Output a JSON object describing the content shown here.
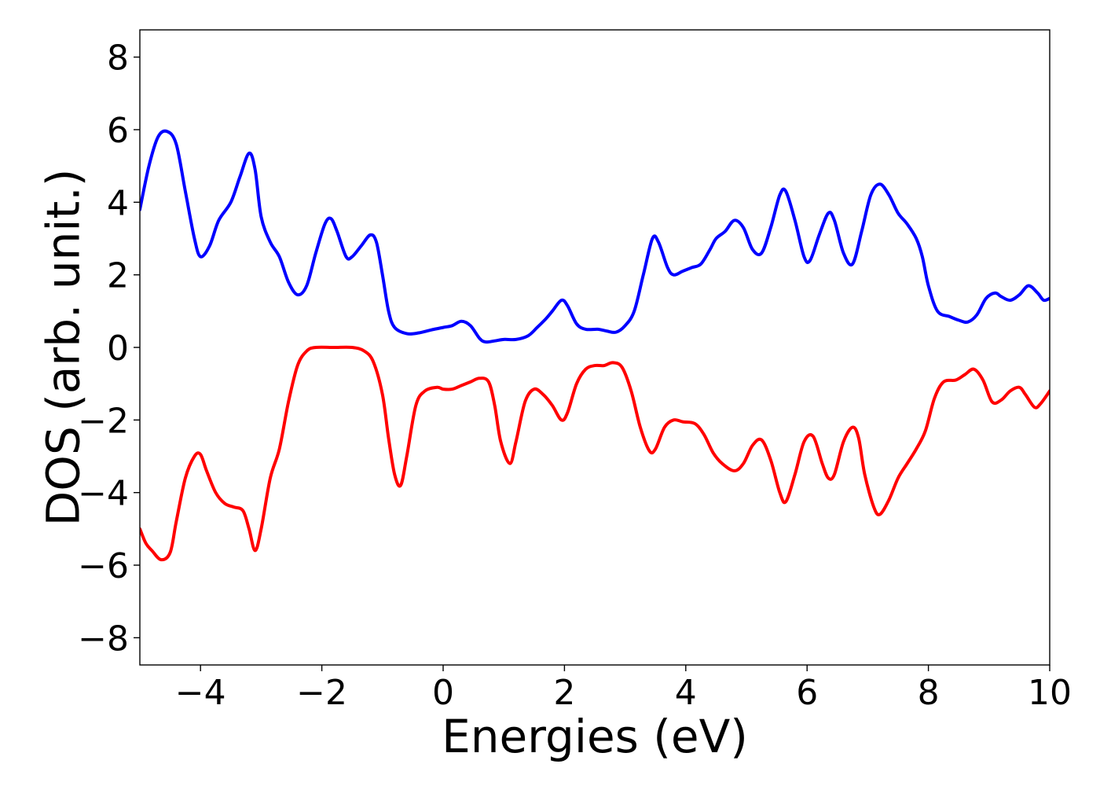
{
  "chart_data": {
    "type": "line",
    "title": "",
    "xlabel": "Energies (eV)",
    "ylabel": "DOS (arb. unit.)",
    "xlim": [
      -5,
      10
    ],
    "ylim": [
      -8.75,
      8.75
    ],
    "x_ticks": [
      -4,
      -2,
      0,
      2,
      4,
      6,
      8,
      10
    ],
    "x_tick_labels": [
      "−4",
      "−2",
      "0",
      "2",
      "4",
      "6",
      "8",
      "10"
    ],
    "y_ticks": [
      -8,
      -6,
      -4,
      -2,
      0,
      2,
      4,
      6,
      8
    ],
    "y_tick_labels": [
      "−8",
      "−6",
      "−4",
      "−2",
      "0",
      "2",
      "4",
      "6",
      "8"
    ],
    "grid": false,
    "legend": "none",
    "series": [
      {
        "color": "#0000ff",
        "points": [
          [
            -5.0,
            3.8
          ],
          [
            -4.85,
            5.0
          ],
          [
            -4.7,
            5.8
          ],
          [
            -4.55,
            5.95
          ],
          [
            -4.4,
            5.6
          ],
          [
            -4.25,
            4.3
          ],
          [
            -4.1,
            3.0
          ],
          [
            -4.0,
            2.5
          ],
          [
            -3.85,
            2.8
          ],
          [
            -3.7,
            3.5
          ],
          [
            -3.5,
            4.0
          ],
          [
            -3.35,
            4.7
          ],
          [
            -3.2,
            5.35
          ],
          [
            -3.1,
            4.9
          ],
          [
            -3.0,
            3.6
          ],
          [
            -2.85,
            2.9
          ],
          [
            -2.7,
            2.5
          ],
          [
            -2.55,
            1.8
          ],
          [
            -2.4,
            1.45
          ],
          [
            -2.25,
            1.7
          ],
          [
            -2.1,
            2.6
          ],
          [
            -1.95,
            3.4
          ],
          [
            -1.85,
            3.55
          ],
          [
            -1.75,
            3.2
          ],
          [
            -1.6,
            2.5
          ],
          [
            -1.5,
            2.5
          ],
          [
            -1.35,
            2.8
          ],
          [
            -1.2,
            3.1
          ],
          [
            -1.1,
            2.9
          ],
          [
            -1.0,
            2.0
          ],
          [
            -0.9,
            1.0
          ],
          [
            -0.8,
            0.55
          ],
          [
            -0.6,
            0.38
          ],
          [
            -0.4,
            0.4
          ],
          [
            -0.2,
            0.48
          ],
          [
            0.0,
            0.55
          ],
          [
            0.15,
            0.6
          ],
          [
            0.3,
            0.72
          ],
          [
            0.45,
            0.6
          ],
          [
            0.6,
            0.25
          ],
          [
            0.7,
            0.15
          ],
          [
            0.85,
            0.18
          ],
          [
            1.0,
            0.22
          ],
          [
            1.2,
            0.22
          ],
          [
            1.4,
            0.32
          ],
          [
            1.55,
            0.55
          ],
          [
            1.7,
            0.8
          ],
          [
            1.8,
            1.0
          ],
          [
            1.95,
            1.3
          ],
          [
            2.05,
            1.15
          ],
          [
            2.2,
            0.65
          ],
          [
            2.35,
            0.5
          ],
          [
            2.55,
            0.5
          ],
          [
            2.7,
            0.45
          ],
          [
            2.85,
            0.42
          ],
          [
            3.0,
            0.6
          ],
          [
            3.15,
            1.0
          ],
          [
            3.3,
            2.0
          ],
          [
            3.45,
            3.0
          ],
          [
            3.55,
            2.9
          ],
          [
            3.7,
            2.2
          ],
          [
            3.8,
            2.0
          ],
          [
            3.95,
            2.1
          ],
          [
            4.1,
            2.2
          ],
          [
            4.25,
            2.3
          ],
          [
            4.4,
            2.7
          ],
          [
            4.5,
            3.0
          ],
          [
            4.65,
            3.2
          ],
          [
            4.8,
            3.5
          ],
          [
            4.95,
            3.3
          ],
          [
            5.1,
            2.7
          ],
          [
            5.25,
            2.6
          ],
          [
            5.4,
            3.3
          ],
          [
            5.55,
            4.2
          ],
          [
            5.65,
            4.3
          ],
          [
            5.8,
            3.5
          ],
          [
            5.95,
            2.5
          ],
          [
            6.05,
            2.4
          ],
          [
            6.2,
            3.1
          ],
          [
            6.35,
            3.7
          ],
          [
            6.45,
            3.5
          ],
          [
            6.6,
            2.6
          ],
          [
            6.75,
            2.3
          ],
          [
            6.9,
            3.2
          ],
          [
            7.05,
            4.2
          ],
          [
            7.2,
            4.5
          ],
          [
            7.35,
            4.2
          ],
          [
            7.5,
            3.7
          ],
          [
            7.65,
            3.4
          ],
          [
            7.8,
            3.0
          ],
          [
            7.9,
            2.5
          ],
          [
            8.0,
            1.7
          ],
          [
            8.15,
            1.0
          ],
          [
            8.35,
            0.85
          ],
          [
            8.5,
            0.75
          ],
          [
            8.65,
            0.7
          ],
          [
            8.8,
            0.9
          ],
          [
            8.95,
            1.35
          ],
          [
            9.1,
            1.5
          ],
          [
            9.2,
            1.4
          ],
          [
            9.35,
            1.3
          ],
          [
            9.5,
            1.45
          ],
          [
            9.65,
            1.7
          ],
          [
            9.8,
            1.5
          ],
          [
            9.9,
            1.3
          ],
          [
            10.0,
            1.35
          ]
        ]
      },
      {
        "color": "#ff0000",
        "points": [
          [
            -5.0,
            -5.0
          ],
          [
            -4.9,
            -5.4
          ],
          [
            -4.8,
            -5.6
          ],
          [
            -4.65,
            -5.85
          ],
          [
            -4.5,
            -5.65
          ],
          [
            -4.4,
            -4.8
          ],
          [
            -4.25,
            -3.6
          ],
          [
            -4.1,
            -3.0
          ],
          [
            -4.0,
            -2.95
          ],
          [
            -3.9,
            -3.4
          ],
          [
            -3.75,
            -4.0
          ],
          [
            -3.6,
            -4.3
          ],
          [
            -3.45,
            -4.4
          ],
          [
            -3.3,
            -4.5
          ],
          [
            -3.2,
            -5.0
          ],
          [
            -3.1,
            -5.6
          ],
          [
            -3.0,
            -5.0
          ],
          [
            -2.85,
            -3.6
          ],
          [
            -2.7,
            -2.8
          ],
          [
            -2.55,
            -1.5
          ],
          [
            -2.4,
            -0.5
          ],
          [
            -2.25,
            -0.1
          ],
          [
            -2.1,
            0.0
          ],
          [
            -1.8,
            0.0
          ],
          [
            -1.5,
            0.0
          ],
          [
            -1.3,
            -0.1
          ],
          [
            -1.15,
            -0.4
          ],
          [
            -1.0,
            -1.3
          ],
          [
            -0.9,
            -2.5
          ],
          [
            -0.8,
            -3.5
          ],
          [
            -0.7,
            -3.8
          ],
          [
            -0.6,
            -3.0
          ],
          [
            -0.45,
            -1.6
          ],
          [
            -0.3,
            -1.2
          ],
          [
            -0.1,
            -1.1
          ],
          [
            0.0,
            -1.15
          ],
          [
            0.15,
            -1.15
          ],
          [
            0.3,
            -1.05
          ],
          [
            0.45,
            -0.95
          ],
          [
            0.6,
            -0.85
          ],
          [
            0.75,
            -0.95
          ],
          [
            0.85,
            -1.6
          ],
          [
            0.95,
            -2.6
          ],
          [
            1.1,
            -3.2
          ],
          [
            1.2,
            -2.6
          ],
          [
            1.35,
            -1.5
          ],
          [
            1.5,
            -1.15
          ],
          [
            1.65,
            -1.3
          ],
          [
            1.8,
            -1.6
          ],
          [
            1.95,
            -2.0
          ],
          [
            2.05,
            -1.8
          ],
          [
            2.2,
            -1.0
          ],
          [
            2.35,
            -0.6
          ],
          [
            2.5,
            -0.5
          ],
          [
            2.65,
            -0.5
          ],
          [
            2.8,
            -0.42
          ],
          [
            2.95,
            -0.55
          ],
          [
            3.1,
            -1.2
          ],
          [
            3.25,
            -2.2
          ],
          [
            3.4,
            -2.85
          ],
          [
            3.5,
            -2.8
          ],
          [
            3.65,
            -2.2
          ],
          [
            3.8,
            -2.0
          ],
          [
            3.95,
            -2.05
          ],
          [
            4.15,
            -2.1
          ],
          [
            4.3,
            -2.4
          ],
          [
            4.45,
            -2.9
          ],
          [
            4.6,
            -3.2
          ],
          [
            4.8,
            -3.4
          ],
          [
            4.95,
            -3.2
          ],
          [
            5.1,
            -2.7
          ],
          [
            5.25,
            -2.55
          ],
          [
            5.4,
            -3.1
          ],
          [
            5.55,
            -4.0
          ],
          [
            5.65,
            -4.25
          ],
          [
            5.8,
            -3.5
          ],
          [
            5.95,
            -2.6
          ],
          [
            6.1,
            -2.45
          ],
          [
            6.25,
            -3.2
          ],
          [
            6.35,
            -3.6
          ],
          [
            6.45,
            -3.5
          ],
          [
            6.6,
            -2.6
          ],
          [
            6.75,
            -2.2
          ],
          [
            6.85,
            -2.5
          ],
          [
            6.95,
            -3.5
          ],
          [
            7.1,
            -4.4
          ],
          [
            7.2,
            -4.6
          ],
          [
            7.35,
            -4.2
          ],
          [
            7.5,
            -3.6
          ],
          [
            7.65,
            -3.2
          ],
          [
            7.8,
            -2.8
          ],
          [
            7.95,
            -2.3
          ],
          [
            8.1,
            -1.4
          ],
          [
            8.25,
            -0.95
          ],
          [
            8.45,
            -0.9
          ],
          [
            8.6,
            -0.75
          ],
          [
            8.75,
            -0.6
          ],
          [
            8.9,
            -0.9
          ],
          [
            9.05,
            -1.5
          ],
          [
            9.2,
            -1.45
          ],
          [
            9.35,
            -1.2
          ],
          [
            9.5,
            -1.1
          ],
          [
            9.6,
            -1.3
          ],
          [
            9.75,
            -1.65
          ],
          [
            9.85,
            -1.55
          ],
          [
            10.0,
            -1.2
          ]
        ]
      }
    ]
  }
}
